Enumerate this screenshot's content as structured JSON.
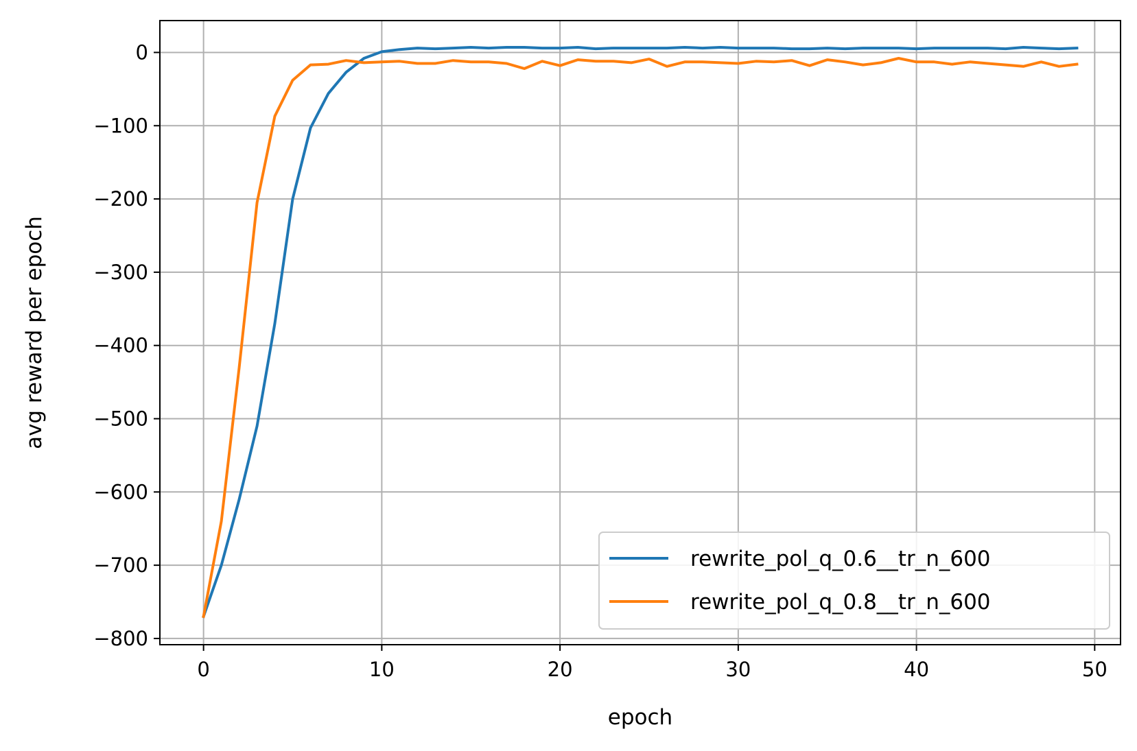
{
  "chart_data": {
    "type": "line",
    "title": "",
    "xlabel": "epoch",
    "ylabel": "avg reward per epoch",
    "xlim": [
      -2.45,
      51.45
    ],
    "ylim": [
      -808.5,
      43.5
    ],
    "xticks": [
      0,
      10,
      20,
      30,
      40,
      50
    ],
    "yticks": [
      0,
      -100,
      -200,
      -300,
      -400,
      -500,
      -600,
      -700,
      -800
    ],
    "xtick_labels": [
      "0",
      "10",
      "20",
      "30",
      "40",
      "50"
    ],
    "ytick_labels": [
      "0",
      "−100",
      "−200",
      "−300",
      "−400",
      "−500",
      "−600",
      "−700",
      "−800"
    ],
    "grid": true,
    "legend_position": "lower-right",
    "x": [
      0,
      1,
      2,
      3,
      4,
      5,
      6,
      7,
      8,
      9,
      10,
      11,
      12,
      13,
      14,
      15,
      16,
      17,
      18,
      19,
      20,
      21,
      22,
      23,
      24,
      25,
      26,
      27,
      28,
      29,
      30,
      31,
      32,
      33,
      34,
      35,
      36,
      37,
      38,
      39,
      40,
      41,
      42,
      43,
      44,
      45,
      46,
      47,
      48,
      49
    ],
    "series": [
      {
        "name": "rewrite_pol_q_0.6__tr_n_600",
        "color": "#1f77b4",
        "values": [
          -770,
          -700,
          -610,
          -510,
          -370,
          -200,
          -103,
          -56,
          -27,
          -8,
          1,
          4,
          6,
          5,
          6,
          7,
          6,
          7,
          7,
          6,
          6,
          7,
          5,
          6,
          6,
          6,
          6,
          7,
          6,
          7,
          6,
          6,
          6,
          5,
          5,
          6,
          5,
          6,
          6,
          6,
          5,
          6,
          6,
          6,
          6,
          5,
          7,
          6,
          5,
          6
        ]
      },
      {
        "name": "rewrite_pol_q_0.8__tr_n_600",
        "color": "#ff7f0e",
        "values": [
          -770,
          -640,
          -430,
          -205,
          -87,
          -38,
          -17,
          -16,
          -11,
          -14,
          -13,
          -12,
          -15,
          -15,
          -11,
          -13,
          -13,
          -15,
          -22,
          -12,
          -18,
          -10,
          -12,
          -12,
          -14,
          -9,
          -19,
          -13,
          -13,
          -14,
          -15,
          -12,
          -13,
          -11,
          -18,
          -10,
          -13,
          -17,
          -14,
          -8,
          -13,
          -13,
          -16,
          -13,
          -15,
          -17,
          -19,
          -13,
          -19,
          -16
        ]
      }
    ]
  }
}
